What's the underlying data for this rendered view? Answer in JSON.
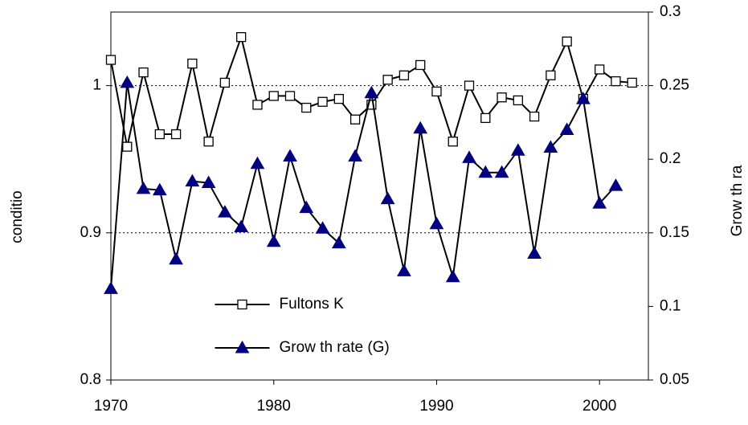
{
  "chart_data": {
    "type": "line",
    "x": [
      1970,
      1971,
      1972,
      1973,
      1974,
      1975,
      1976,
      1977,
      1978,
      1979,
      1980,
      1981,
      1982,
      1983,
      1984,
      1985,
      1986,
      1987,
      1988,
      1989,
      1990,
      1991,
      1992,
      1993,
      1994,
      1995,
      1996,
      1997,
      1998,
      1999,
      2000,
      2001,
      2002
    ],
    "xlim": [
      1970,
      2003
    ],
    "xticks": [
      1970,
      1980,
      1990,
      2000
    ],
    "ylim": [
      0.8,
      1.05
    ],
    "yticks": [
      0.8,
      0.9,
      1
    ],
    "y2lim": [
      0.05,
      0.3
    ],
    "y2ticks": [
      0.05,
      0.1,
      0.15,
      0.2,
      0.25,
      0.3
    ],
    "y_label": "conditio",
    "y2_label": "Grow th ra",
    "grid": true,
    "legend": "lower center",
    "series": [
      {
        "name": "Fultons K",
        "color": "#000000",
        "marker": "square",
        "values": [
          1.0175,
          0.9585,
          1.009,
          0.967,
          0.967,
          1.015,
          0.962,
          1.002,
          1.033,
          0.987,
          0.993,
          0.993,
          0.985,
          0.989,
          0.991,
          0.977,
          0.987,
          1.004,
          1.007,
          1.014,
          0.996,
          0.962,
          1.0,
          0.978,
          0.992,
          0.99,
          0.979,
          1.007,
          1.03,
          0.991,
          1.011,
          1.003,
          1.002
        ]
      },
      {
        "name": "Grow th rate (G)",
        "color": "#000080",
        "marker": "triangle",
        "axis": "y2",
        "values": [
          0.112,
          0.252,
          0.18,
          0.179,
          0.132,
          0.185,
          0.184,
          0.164,
          0.154,
          0.197,
          0.144,
          0.202,
          0.167,
          0.153,
          0.143,
          0.202,
          0.245,
          0.173,
          0.124,
          0.221,
          0.156,
          0.12,
          0.201,
          0.191,
          0.191,
          0.206,
          0.136,
          0.208,
          0.22,
          0.241,
          0.17,
          0.182,
          null
        ]
      }
    ]
  }
}
